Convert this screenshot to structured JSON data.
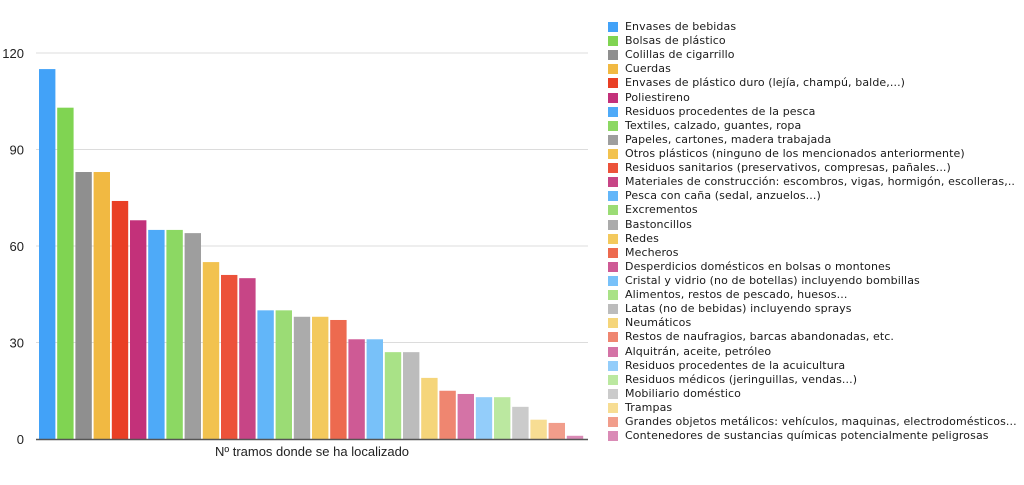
{
  "chart_data": {
    "type": "bar",
    "title": "",
    "xlabel": "Nº tramos donde se ha localizado",
    "ylabel": "",
    "ylim": [
      0,
      120
    ],
    "yticks": [
      0,
      30,
      60,
      90,
      120
    ],
    "grid": true,
    "legend_position": "right",
    "series": [
      {
        "name": "Envases de bebidas",
        "value": 115,
        "color": "#42a2f8"
      },
      {
        "name": "Bolsas de plástico",
        "value": 103,
        "color": "#80d452"
      },
      {
        "name": "Colillas de cigarrillo",
        "value": 83,
        "color": "#8f8f8f"
      },
      {
        "name": "Cuerdas",
        "value": 83,
        "color": "#f1b942"
      },
      {
        "name": "Envases de plástico duro (lejía, champú, balde,...)",
        "value": 74,
        "color": "#e93f25"
      },
      {
        "name": "Poliestireno",
        "value": 68,
        "color": "#c3317a"
      },
      {
        "name": "Residuos procedentes de la pesca",
        "value": 65,
        "color": "#4eaaf8"
      },
      {
        "name": "Textiles, calzado, guantes, ropa",
        "value": 65,
        "color": "#8cd863"
      },
      {
        "name": "Papeles, cartones, madera trabajada",
        "value": 64,
        "color": "#9e9e9e"
      },
      {
        "name": "Otros plásticos (ninguno de los mencionados anteriormente)",
        "value": 55,
        "color": "#f2c24f"
      },
      {
        "name": "Residuos sanitarios (preservativos, compresas, pañales...)",
        "value": 51,
        "color": "#ec523a"
      },
      {
        "name": "Materiales de construcción: escombros, vigas, hormigón, escolleras,..",
        "value": 50,
        "color": "#c74586"
      },
      {
        "name": "Pesca con caña (sedal, anzuelos...)",
        "value": 40,
        "color": "#62b6f9"
      },
      {
        "name": "Excrementos",
        "value": 40,
        "color": "#9bdc75"
      },
      {
        "name": "Bastoncillos",
        "value": 38,
        "color": "#ababab"
      },
      {
        "name": "Redes",
        "value": 38,
        "color": "#f3c95d"
      },
      {
        "name": "Mecheros",
        "value": 37,
        "color": "#ed6a4f"
      },
      {
        "name": "Desperdicios domésticos en bolsas o montones",
        "value": 31,
        "color": "#ce5a95"
      },
      {
        "name": "Cristal y vidrio (no de botellas) incluyendo bombillas",
        "value": 31,
        "color": "#78c1f9"
      },
      {
        "name": "Alimentos, restos de pescado, huesos...",
        "value": 27,
        "color": "#a9e287"
      },
      {
        "name": "Latas (no de bebidas) incluyendo sprays",
        "value": 27,
        "color": "#bcbcbc"
      },
      {
        "name": "Neumáticos",
        "value": 19,
        "color": "#f5d57a"
      },
      {
        "name": "Restos de naufragios, barcas abandonadas, etc.",
        "value": 15,
        "color": "#ef8670"
      },
      {
        "name": "Alquitrán, aceite, petróleo",
        "value": 14,
        "color": "#d473a6"
      },
      {
        "name": "Residuos procedentes de la acuicultura",
        "value": 13,
        "color": "#93cdfa"
      },
      {
        "name": "Residuos médicos (jeringuillas, vendas...)",
        "value": 13,
        "color": "#bbe8a0"
      },
      {
        "name": "Mobiliario doméstico",
        "value": 10,
        "color": "#cbcbcb"
      },
      {
        "name": "Trampas",
        "value": 6,
        "color": "#f7dd93"
      },
      {
        "name": "Grandes objetos metálicos: vehículos, maquinas, electrodomésticos...",
        "value": 5,
        "color": "#f19d8b"
      },
      {
        "name": "Contenedores de sustancias químicas potencialmente peligrosas",
        "value": 1,
        "color": "#da8bb6"
      }
    ]
  }
}
